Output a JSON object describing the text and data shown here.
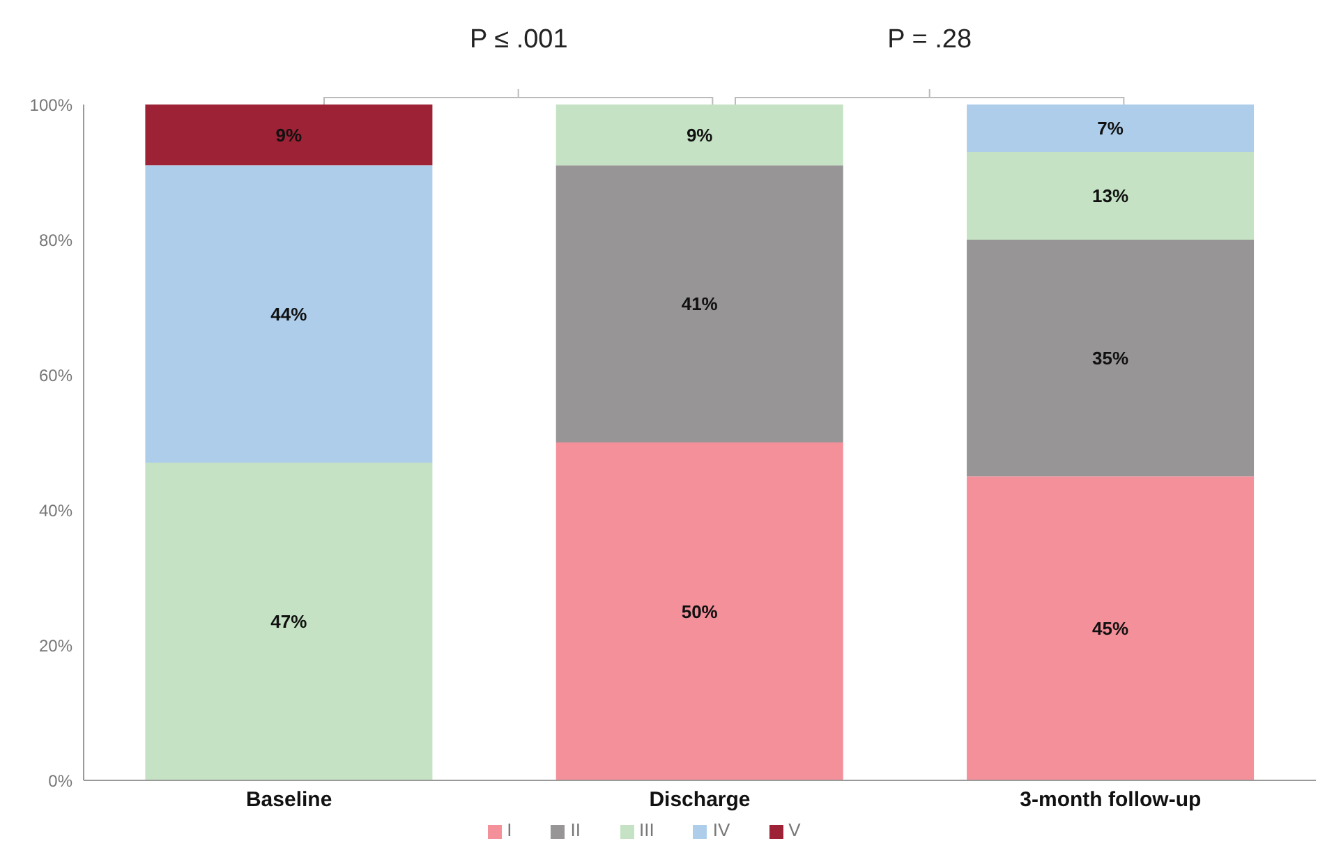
{
  "chart_data": {
    "type": "bar",
    "stacked": true,
    "categories": [
      "Baseline",
      "Discharge",
      "3-month follow-up"
    ],
    "series": [
      {
        "name": "I",
        "color": "#f4909a",
        "values": [
          0,
          50,
          45
        ],
        "value_labels": [
          null,
          "50%",
          "45%"
        ]
      },
      {
        "name": "II",
        "color": "#979595",
        "values": [
          0,
          41,
          35
        ],
        "value_labels": [
          null,
          "41%",
          "35%"
        ]
      },
      {
        "name": "III",
        "color": "#c5e3c4",
        "values": [
          47,
          9,
          13
        ],
        "value_labels": [
          "47%",
          "9%",
          "13%"
        ]
      },
      {
        "name": "IV",
        "color": "#aecdeb",
        "values": [
          44,
          0,
          7
        ],
        "value_labels": [
          "44%",
          null,
          "7%"
        ]
      },
      {
        "name": "V",
        "color": "#9e2236",
        "values": [
          9,
          0,
          0
        ],
        "value_labels": [
          "9%",
          null,
          null
        ]
      }
    ],
    "ylim": [
      0,
      100
    ],
    "yticks": [
      {
        "value": 0,
        "label": "0%"
      },
      {
        "value": 20,
        "label": "20%"
      },
      {
        "value": 40,
        "label": "40%"
      },
      {
        "value": 60,
        "label": "60%"
      },
      {
        "value": 80,
        "label": "80%"
      },
      {
        "value": 100,
        "label": "100%"
      }
    ],
    "annotations": [
      "P ≤ .001",
      "P = .28"
    ],
    "grid": false,
    "legend": "bottom"
  }
}
